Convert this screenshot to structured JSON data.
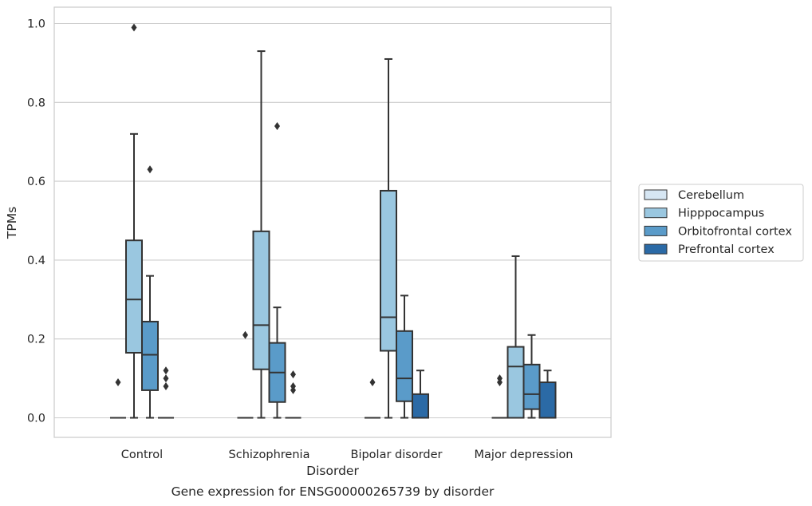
{
  "chart_data": {
    "type": "box",
    "xlabel": "Disorder",
    "ylabel": "TPMs",
    "caption": "Gene expression for ENSG00000265739 by disorder",
    "ylim": [
      -0.05,
      1.04
    ],
    "yticks": [
      0.0,
      0.2,
      0.4,
      0.6,
      0.8,
      1.0
    ],
    "ytick_labels": [
      "0.0",
      "0.2",
      "0.4",
      "0.6",
      "0.8",
      "1.0"
    ],
    "grid": "horizontal",
    "legend_position": "right",
    "categories": [
      "Control",
      "Schizophrenia",
      "Bipolar disorder",
      "Major depression"
    ],
    "series": [
      {
        "name": "Cerebellum",
        "color": "#d6e6f3",
        "boxes": [
          {
            "q1": 0.0,
            "median": 0.0,
            "q3": 0.0,
            "whislo": 0.0,
            "whishi": 0.0,
            "fliers": [
              0.09
            ]
          },
          {
            "q1": 0.0,
            "median": 0.0,
            "q3": 0.0,
            "whislo": 0.0,
            "whishi": 0.0,
            "fliers": [
              0.21
            ]
          },
          {
            "q1": 0.0,
            "median": 0.0,
            "q3": 0.0,
            "whislo": 0.0,
            "whishi": 0.0,
            "fliers": [
              0.09
            ]
          },
          {
            "q1": 0.0,
            "median": 0.0,
            "q3": 0.0,
            "whislo": 0.0,
            "whishi": 0.0,
            "fliers": [
              0.09,
              0.1
            ]
          }
        ]
      },
      {
        "name": "Hipppocampus",
        "color": "#9ac7e0",
        "boxes": [
          {
            "q1": 0.165,
            "median": 0.3,
            "q3": 0.45,
            "whislo": 0.0,
            "whishi": 0.72,
            "fliers": [
              0.99
            ]
          },
          {
            "q1": 0.123,
            "median": 0.235,
            "q3": 0.473,
            "whislo": 0.0,
            "whishi": 0.93,
            "fliers": []
          },
          {
            "q1": 0.17,
            "median": 0.255,
            "q3": 0.576,
            "whislo": 0.0,
            "whishi": 0.91,
            "fliers": []
          },
          {
            "q1": 0.0,
            "median": 0.13,
            "q3": 0.18,
            "whislo": 0.0,
            "whishi": 0.41,
            "fliers": []
          }
        ]
      },
      {
        "name": "Orbitofrontal cortex",
        "color": "#5a9bc9",
        "boxes": [
          {
            "q1": 0.07,
            "median": 0.16,
            "q3": 0.244,
            "whislo": 0.0,
            "whishi": 0.36,
            "fliers": [
              0.63
            ]
          },
          {
            "q1": 0.04,
            "median": 0.115,
            "q3": 0.19,
            "whislo": 0.0,
            "whishi": 0.28,
            "fliers": [
              0.74
            ]
          },
          {
            "q1": 0.042,
            "median": 0.1,
            "q3": 0.22,
            "whislo": 0.0,
            "whishi": 0.31,
            "fliers": []
          },
          {
            "q1": 0.022,
            "median": 0.06,
            "q3": 0.135,
            "whislo": 0.0,
            "whishi": 0.21,
            "fliers": []
          }
        ]
      },
      {
        "name": "Prefrontal cortex",
        "color": "#2b6aa6",
        "boxes": [
          {
            "q1": 0.0,
            "median": 0.0,
            "q3": 0.0,
            "whislo": 0.0,
            "whishi": 0.0,
            "fliers": [
              0.08,
              0.1,
              0.12
            ]
          },
          {
            "q1": 0.0,
            "median": 0.0,
            "q3": 0.0,
            "whislo": 0.0,
            "whishi": 0.0,
            "fliers": [
              0.07,
              0.08,
              0.11
            ]
          },
          {
            "q1": 0.0,
            "median": 0.0,
            "q3": 0.06,
            "whislo": 0.0,
            "whishi": 0.12,
            "fliers": []
          },
          {
            "q1": 0.0,
            "median": 0.0,
            "q3": 0.09,
            "whislo": 0.0,
            "whishi": 0.12,
            "fliers": []
          }
        ]
      }
    ]
  }
}
